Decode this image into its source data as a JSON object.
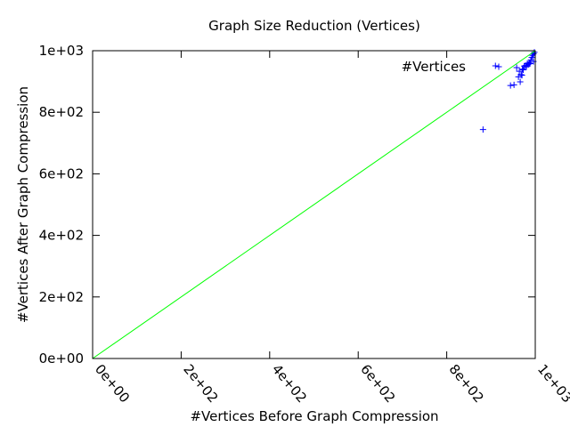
{
  "chart_data": {
    "type": "scatter",
    "title": "Graph Size Reduction (Vertices)",
    "xlabel": "#Vertices Before Graph Compression",
    "ylabel": "#Vertices After Graph Compression",
    "xlim": [
      0,
      1000
    ],
    "ylim": [
      0,
      1000
    ],
    "x_ticks": [
      0,
      200,
      400,
      600,
      800,
      1000
    ],
    "x_tick_labels": [
      "0e+00",
      "2e+02",
      "4e+02",
      "6e+02",
      "8e+02",
      "1e+03"
    ],
    "y_ticks": [
      0,
      200,
      400,
      600,
      800,
      1000
    ],
    "y_tick_labels": [
      "0e+00",
      "2e+02",
      "4e+02",
      "6e+02",
      "8e+02",
      "1e+03"
    ],
    "grid": false,
    "legend": {
      "placement": "top-right",
      "entries": [
        {
          "label": "#Vertices",
          "color": "#0000ff",
          "marker": "plus"
        }
      ]
    },
    "series": [
      {
        "name": "#Vertices",
        "color": "#0000ff",
        "marker": "plus",
        "points": [
          [
            882,
            744
          ],
          [
            910,
            951
          ],
          [
            944,
            887
          ],
          [
            952,
            889
          ],
          [
            958,
            945
          ],
          [
            962,
            915
          ],
          [
            964,
            933
          ],
          [
            966,
            899
          ],
          [
            968,
            922
          ],
          [
            970,
            920
          ],
          [
            971,
            940
          ],
          [
            973,
            938
          ],
          [
            975,
            950
          ],
          [
            978,
            952
          ],
          [
            980,
            948
          ],
          [
            982,
            958
          ],
          [
            984,
            955
          ],
          [
            986,
            960
          ],
          [
            988,
            958
          ],
          [
            990,
            970
          ],
          [
            992,
            978
          ],
          [
            994,
            985
          ],
          [
            996,
            990
          ],
          [
            998,
            995
          ],
          [
            996,
            965
          ]
        ]
      },
      {
        "name": "",
        "color": "#00ff00",
        "type": "line",
        "points": [
          [
            0,
            0
          ],
          [
            1000,
            1000
          ]
        ]
      }
    ]
  }
}
